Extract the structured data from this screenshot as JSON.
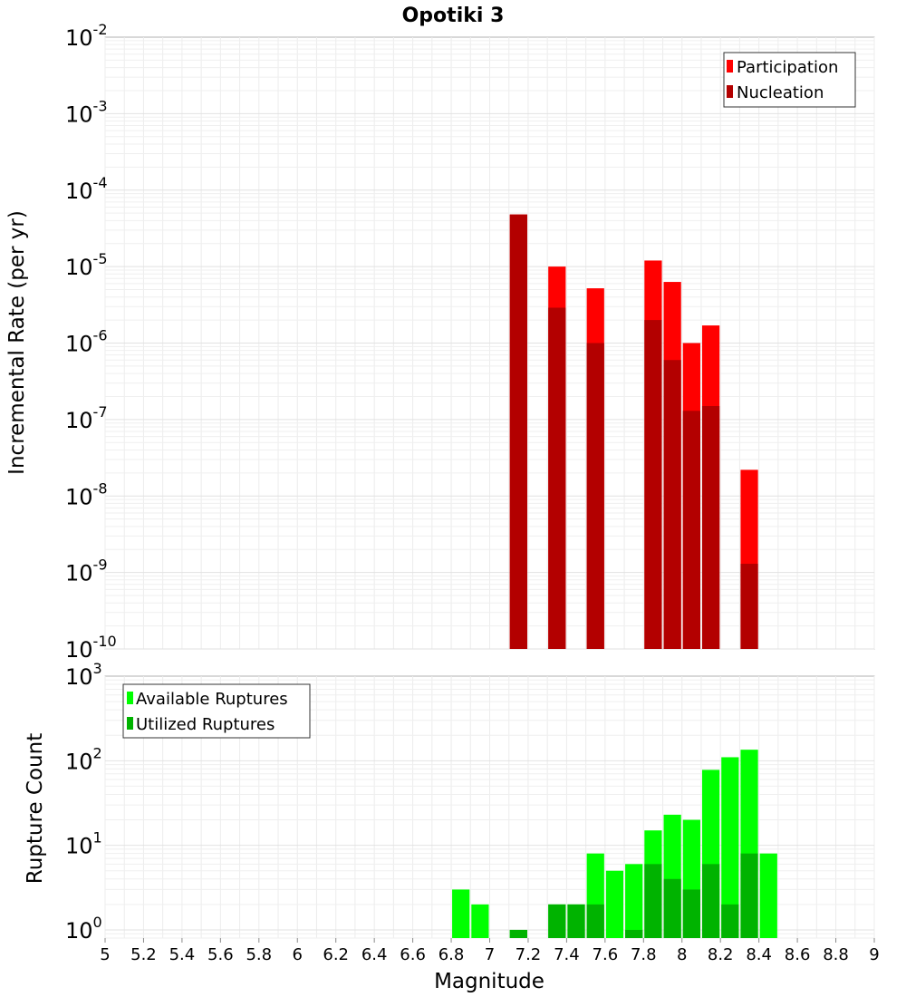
{
  "chart_data": [
    {
      "type": "bar",
      "title": "Opotiki 3",
      "ylabel": "Incremental Rate (per yr)",
      "xlabel": "",
      "yscale": "log",
      "ylim": [
        1e-10,
        0.01
      ],
      "xlim": [
        5,
        9
      ],
      "grid": true,
      "legend_position": "top-right",
      "x": [
        7.15,
        7.35,
        7.55,
        7.85,
        7.95,
        8.05,
        8.15,
        8.35
      ],
      "series": [
        {
          "name": "Participation",
          "color": "#ff0000",
          "values": [
            4.8e-05,
            1e-05,
            5.2e-06,
            1.2e-05,
            6.3e-06,
            1e-06,
            1.7e-06,
            2.2e-08
          ]
        },
        {
          "name": "Nucleation",
          "color": "#b30000",
          "values": [
            4.8e-05,
            2.9e-06,
            1e-06,
            2e-06,
            6e-07,
            1.3e-07,
            1.5e-07,
            1.3e-09
          ]
        }
      ],
      "y_tick_labels": [
        {
          "base": "10",
          "exp": "-10"
        },
        {
          "base": "10",
          "exp": "-9"
        },
        {
          "base": "10",
          "exp": "-8"
        },
        {
          "base": "10",
          "exp": "-7"
        },
        {
          "base": "10",
          "exp": "-6"
        },
        {
          "base": "10",
          "exp": "-5"
        },
        {
          "base": "10",
          "exp": "-4"
        },
        {
          "base": "10",
          "exp": "-3"
        },
        {
          "base": "10",
          "exp": "-2"
        }
      ]
    },
    {
      "type": "bar",
      "title": "",
      "ylabel": "Rupture Count",
      "xlabel": "Magnitude",
      "yscale": "log",
      "ylim": [
        0.8,
        1000
      ],
      "xlim": [
        5,
        9
      ],
      "grid": true,
      "legend_position": "top-left",
      "x": [
        6.85,
        6.95,
        7.15,
        7.35,
        7.45,
        7.55,
        7.65,
        7.75,
        7.85,
        7.95,
        8.05,
        8.15,
        8.25,
        8.35,
        8.45
      ],
      "series": [
        {
          "name": "Available Ruptures",
          "color": "#00ff00",
          "values": [
            3,
            2,
            1,
            2,
            2,
            8,
            5,
            6,
            15,
            23,
            20,
            78,
            110,
            135,
            8
          ]
        },
        {
          "name": "Utilized Ruptures",
          "color": "#00b300",
          "values": [
            0,
            0,
            1,
            2,
            2,
            2,
            0,
            1,
            6,
            4,
            3,
            6,
            2,
            8,
            0
          ]
        }
      ],
      "y_tick_labels": [
        {
          "base": "10",
          "exp": "0"
        },
        {
          "base": "10",
          "exp": "1"
        },
        {
          "base": "10",
          "exp": "2"
        },
        {
          "base": "10",
          "exp": "3"
        }
      ],
      "x_tick_labels": [
        "5",
        "5.2",
        "5.4",
        "5.6",
        "5.8",
        "6",
        "6.2",
        "6.4",
        "6.6",
        "6.8",
        "7",
        "7.2",
        "7.4",
        "7.6",
        "7.8",
        "8",
        "8.2",
        "8.4",
        "8.6",
        "8.8",
        "9"
      ]
    }
  ]
}
